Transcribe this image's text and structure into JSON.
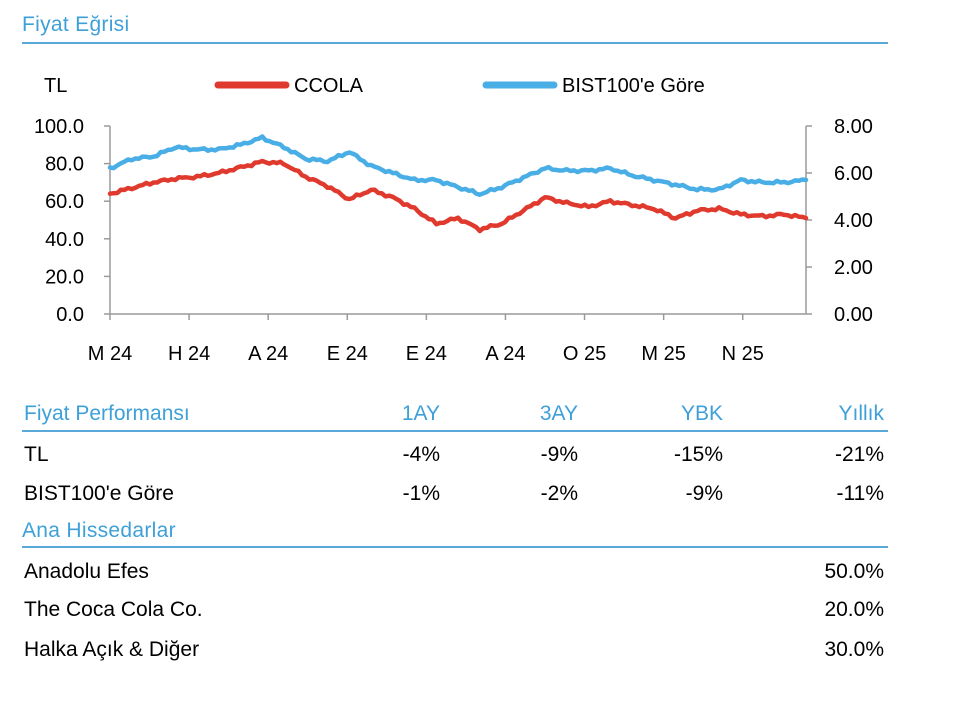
{
  "chart_section": {
    "title": "Fiyat Eğrisi"
  },
  "chart_data": {
    "type": "line",
    "left_axis_label": "TL",
    "x_tick_labels": [
      "M 24",
      "H 24",
      "A 24",
      "E 24",
      "E 24",
      "A 24",
      "O 25",
      "M 25",
      "N 25"
    ],
    "y_left": {
      "ticks": [
        "0.0",
        "20.0",
        "40.0",
        "60.0",
        "80.0",
        "100.0"
      ],
      "range": [
        0,
        100
      ]
    },
    "y_right": {
      "ticks": [
        "0.00",
        "2.00",
        "4.00",
        "6.00",
        "8.00"
      ],
      "range": [
        0,
        8
      ]
    },
    "grid": false,
    "legend_position": "top",
    "series": [
      {
        "name": "CCOLA",
        "axis": "left",
        "color": "#e03a2e",
        "values": [
          64,
          67,
          70,
          72,
          73,
          75,
          78,
          81,
          80,
          73,
          68,
          61,
          66,
          62,
          56,
          48,
          51,
          45,
          48,
          55,
          62,
          59,
          57,
          60,
          58,
          56,
          51,
          55,
          56,
          53,
          52,
          53,
          51
        ]
      },
      {
        "name": "BIST100'e Göre",
        "axis": "right",
        "color": "#4aaee6",
        "values": [
          6.2,
          6.6,
          6.7,
          7.1,
          7.0,
          7.0,
          7.2,
          7.5,
          7.1,
          6.6,
          6.5,
          6.9,
          6.3,
          6.0,
          5.7,
          5.7,
          5.4,
          5.1,
          5.4,
          5.8,
          6.2,
          6.1,
          6.1,
          6.2,
          5.9,
          5.7,
          5.5,
          5.3,
          5.3,
          5.7,
          5.6,
          5.6,
          5.7
        ]
      }
    ]
  },
  "performance": {
    "header": {
      "label": "Fiyat Performansı",
      "cols": [
        "1AY",
        "3AY",
        "YBK",
        "Yıllık"
      ]
    },
    "rows": [
      {
        "label": "TL",
        "values": [
          "-4%",
          "-9%",
          "-15%",
          "-21%"
        ]
      },
      {
        "label": "BIST100'e Göre",
        "values": [
          "-1%",
          "-2%",
          "-9%",
          "-11%"
        ]
      }
    ]
  },
  "shareholders": {
    "title": "Ana Hissedarlar",
    "rows": [
      {
        "name": "Anadolu Efes",
        "pct": "50.0%"
      },
      {
        "name": "The Coca Cola Co.",
        "pct": "20.0%"
      },
      {
        "name": "Halka Açık & Diğer",
        "pct": "30.0%"
      }
    ]
  }
}
